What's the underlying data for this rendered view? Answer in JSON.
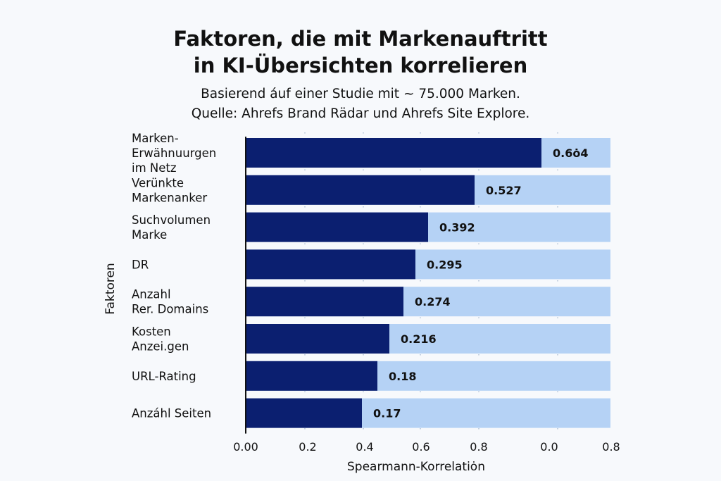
{
  "chart_data": {
    "type": "bar",
    "orientation": "horizontal",
    "title": "Faktoren, die mit Markenauftritt in KI-Übersichten korrelieren",
    "title_lines": [
      "Faktoren, die mit Markenauftritt",
      "in KI-Übersichten korrelieren"
    ],
    "subtitle_lines": [
      "Basierend áuf einer Studie mit ~ 75.000 Marken.",
      "Quelle: Ahrefs Brand Rädar und Ahrefs Site Explore."
    ],
    "categories": [
      [
        "Marken-",
        "Erwähnuurgen",
        "im Netz"
      ],
      [
        "Verünkte",
        "Markenanker"
      ],
      [
        "Suchvolumen",
        "Marke"
      ],
      [
        "DR"
      ],
      [
        "Anzahl",
        "Rer. Domains"
      ],
      [
        "Kosten",
        "Anzei.gen"
      ],
      [
        "URL-Rating"
      ],
      [
        "Anzáhl Seiten"
      ]
    ],
    "values": [
      0.664,
      0.527,
      0.392,
      0.295,
      0.274,
      0.216,
      0.18,
      0.17
    ],
    "value_labels": [
      "0.6ȯ4",
      "0.527",
      "0.392",
      "0.295",
      "0.274",
      "0.216",
      "0.18",
      "0.17"
    ],
    "xlabel": "Spearmann-Korrelatiȯn",
    "ylabel": "Faktoren",
    "xtick_labels": [
      "0.00",
      "0.2",
      "0.4",
      "0.6",
      "0.8",
      "0.0",
      "0.8"
    ],
    "xlim": [
      0,
      0.8
    ],
    "grid": "vertical dotted",
    "colors": {
      "bar": "#0b1f70",
      "track": "#b5d2f5",
      "background": "#f7f9fc",
      "grid": "#9fb3cc"
    }
  }
}
